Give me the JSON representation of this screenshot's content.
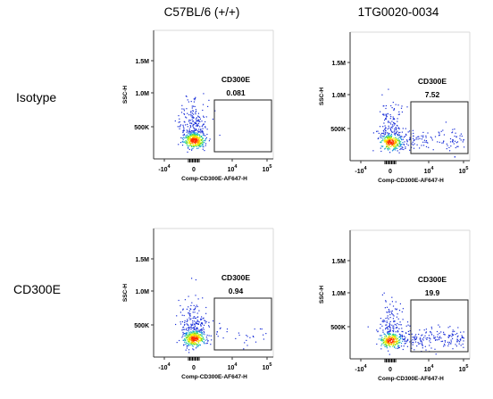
{
  "columns": [
    "C57BL/6 (+/+)",
    "1TG0020-0034"
  ],
  "rows": [
    "Isotype",
    "CD300E"
  ],
  "axes": {
    "xlabel": "Comp-CD300E-AF647-H",
    "ylabel": "SSC-H",
    "yticks": [
      "1.5M",
      "1.0M",
      "500K"
    ],
    "xticks": [
      "-10",
      "0",
      "10",
      "10"
    ],
    "xtick_exponents": [
      "4",
      "",
      "4",
      "5"
    ]
  },
  "chart_data": [
    {
      "type": "scatter",
      "column": "C57BL/6 (+/+)",
      "row": "Isotype",
      "gate": {
        "name": "CD300E",
        "value": "0.081"
      },
      "spread": 0.0
    },
    {
      "type": "scatter",
      "column": "1TG0020-0034",
      "row": "Isotype",
      "gate": {
        "name": "CD300E",
        "value": "7.52"
      },
      "spread": 0.45
    },
    {
      "type": "scatter",
      "column": "C57BL/6 (+/+)",
      "row": "CD300E",
      "gate": {
        "name": "CD300E",
        "value": "0.94"
      },
      "spread": 0.08
    },
    {
      "type": "scatter",
      "column": "1TG0020-0034",
      "row": "CD300E",
      "gate": {
        "name": "CD300E",
        "value": "19.9"
      },
      "spread": 0.8
    }
  ]
}
